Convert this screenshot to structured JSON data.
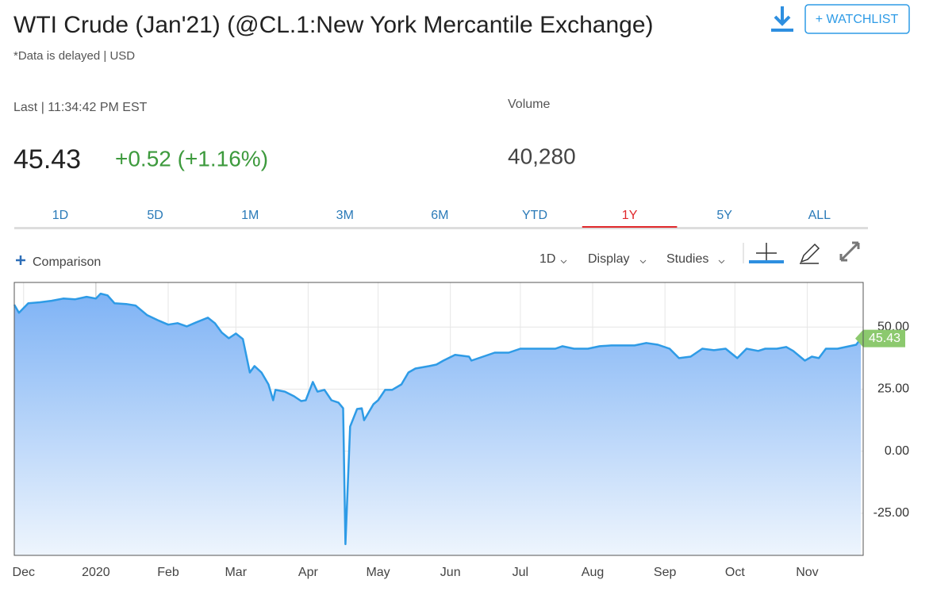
{
  "header": {
    "title": "WTI Crude (Jan'21) (@CL.1:New York Mercantile Exchange)",
    "subtitle": "*Data is delayed | USD",
    "watchlist_button": "+ WATCHLIST"
  },
  "quote": {
    "last_label": "Last | 11:34:42 PM EST",
    "last": "45.43",
    "change": "+0.52 (+1.16%)",
    "volume_label": "Volume",
    "volume": "40,280"
  },
  "tabs": [
    "1D",
    "5D",
    "1M",
    "3M",
    "6M",
    "YTD",
    "1Y",
    "5Y",
    "ALL"
  ],
  "active_tab": "1Y",
  "toolbar": {
    "comparison": "Comparison",
    "interval": "1D",
    "display": "Display",
    "studies": "Studies"
  },
  "chart_data": {
    "type": "area",
    "color": "#2e9be6",
    "grid": true,
    "x": [
      -35,
      -33,
      -29,
      -24,
      -19,
      -14,
      -9,
      -4,
      0,
      2,
      5,
      8,
      13,
      17,
      22,
      27,
      31,
      35,
      39,
      43,
      48,
      51,
      54,
      57,
      60,
      63,
      66,
      68,
      71,
      74,
      76,
      77,
      81,
      85,
      88,
      90,
      93,
      95,
      98,
      101,
      104,
      106,
      107,
      109,
      112,
      114,
      115,
      119,
      121,
      124,
      127,
      131,
      134,
      137,
      143,
      146,
      149,
      154,
      160,
      161,
      166,
      171,
      177,
      182,
      187,
      192,
      197,
      200,
      205,
      211,
      216,
      221,
      226,
      231,
      236,
      241,
      246,
      250,
      255,
      260,
      265,
      270,
      275,
      279,
      284,
      287,
      292,
      296,
      299,
      304,
      307,
      310,
      313,
      318,
      323,
      326,
      328
    ],
    "values": [
      59,
      55.8,
      59.6,
      60,
      60.6,
      61.5,
      61.2,
      62.2,
      61.5,
      63.5,
      62.8,
      59.6,
      59.3,
      58.7,
      54.8,
      52.6,
      51,
      51.6,
      50.3,
      51.9,
      53.8,
      51.6,
      47.8,
      45.5,
      47.4,
      45.2,
      31.7,
      34.3,
      31.7,
      26.9,
      20.5,
      24.7,
      24,
      22.1,
      20.2,
      20.5,
      27.9,
      24,
      24.7,
      20.5,
      19.6,
      17.3,
      -37.5,
      9.9,
      17,
      17.3,
      12.5,
      18.9,
      20.5,
      24.7,
      24.7,
      26.9,
      31.7,
      33.3,
      34.3,
      34.9,
      36.5,
      38.8,
      38.1,
      36.5,
      38.1,
      39.7,
      39.7,
      41.3,
      41.3,
      41.3,
      41.3,
      42.3,
      41.3,
      41.3,
      42.3,
      42.6,
      42.6,
      42.6,
      43.6,
      42.9,
      41.3,
      37.5,
      38.1,
      41.3,
      40.7,
      41.3,
      37.5,
      41.3,
      40.4,
      41.3,
      41.3,
      42,
      40.4,
      36.5,
      38.1,
      37.5,
      41.3,
      41.3,
      42.3,
      42.9,
      45.43
    ],
    "xlim": [
      -35,
      329
    ],
    "xticks": [
      {
        "value": -31,
        "label": "Dec"
      },
      {
        "value": 0,
        "label": "2020"
      },
      {
        "value": 31,
        "label": "Feb"
      },
      {
        "value": 60,
        "label": "Mar"
      },
      {
        "value": 91,
        "label": "Apr"
      },
      {
        "value": 121,
        "label": "May"
      },
      {
        "value": 152,
        "label": "Jun"
      },
      {
        "value": 182,
        "label": "Jul"
      },
      {
        "value": 213,
        "label": "Aug"
      },
      {
        "value": 244,
        "label": "Sep"
      },
      {
        "value": 274,
        "label": "Oct"
      },
      {
        "value": 305,
        "label": "Nov"
      }
    ],
    "ylim": [
      -42,
      68
    ],
    "yticks": [
      {
        "value": -25,
        "label": "-25.00"
      },
      {
        "value": 0,
        "label": "0.00"
      },
      {
        "value": 25,
        "label": "25.00"
      },
      {
        "value": 50,
        "label": "50.00"
      }
    ]
  }
}
